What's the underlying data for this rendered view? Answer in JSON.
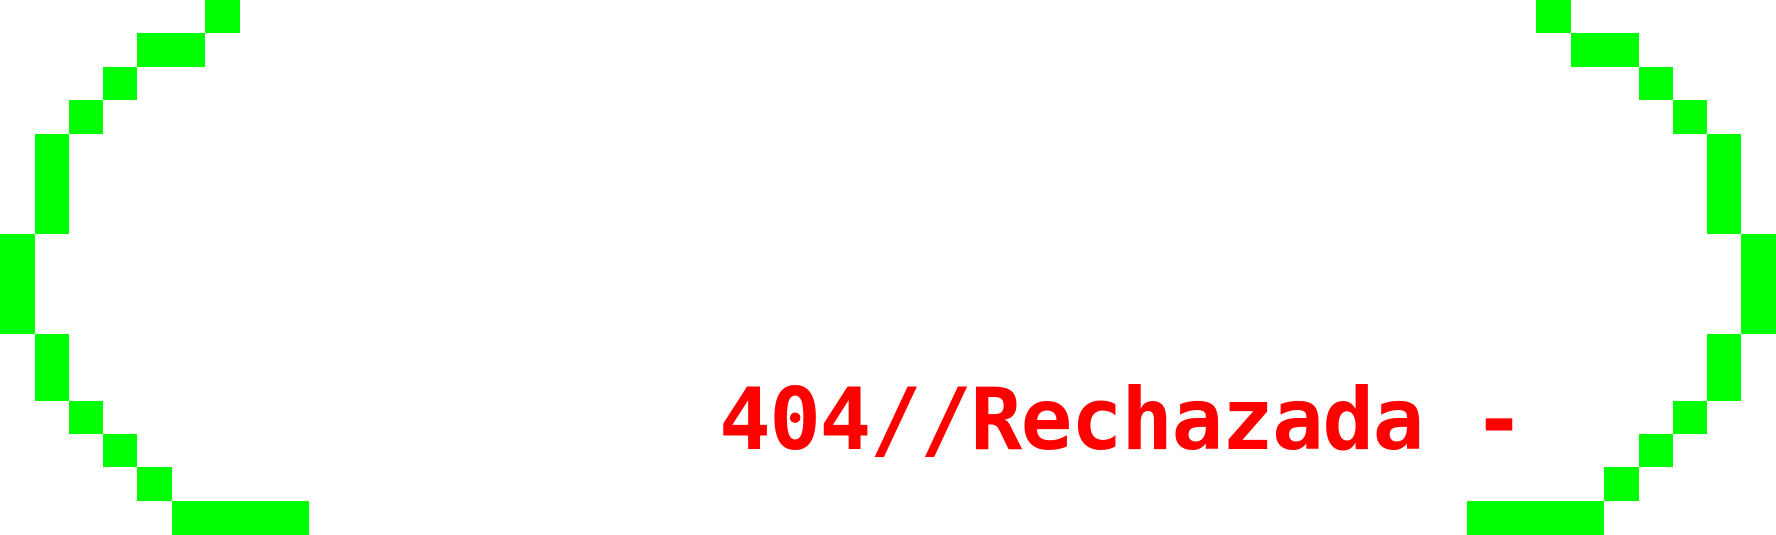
{
  "message": {
    "text": "404//Rechazada -",
    "color": "#ff0000"
  },
  "brackets": {
    "left_glyph": "(",
    "right_glyph": ")",
    "color": "#00ff00"
  }
}
